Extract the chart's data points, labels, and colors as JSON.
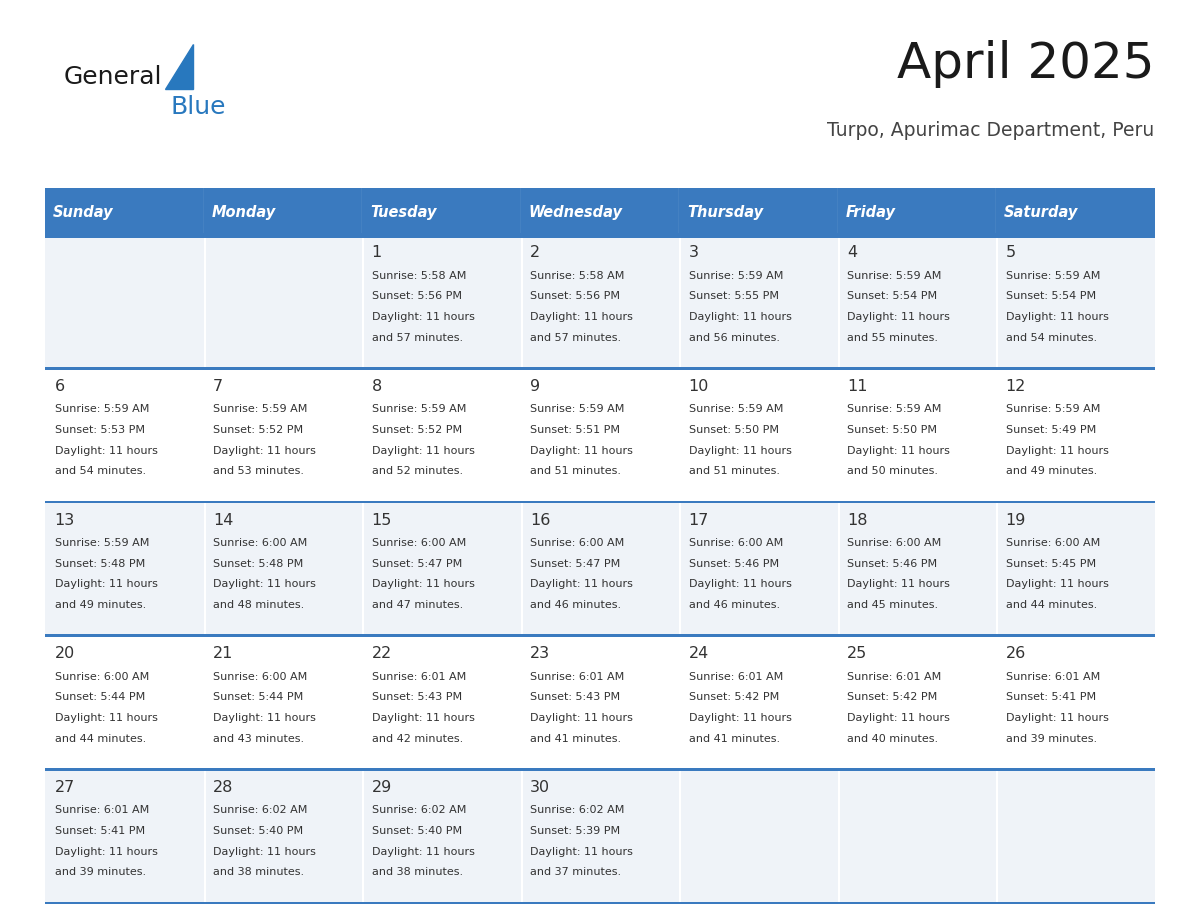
{
  "title": "April 2025",
  "subtitle": "Turpo, Apurimac Department, Peru",
  "days_of_week": [
    "Sunday",
    "Monday",
    "Tuesday",
    "Wednesday",
    "Thursday",
    "Friday",
    "Saturday"
  ],
  "header_bg": "#3a7abf",
  "header_text": "#ffffff",
  "row_bg_odd": "#eff3f8",
  "row_bg_even": "#ffffff",
  "border_color": "#3a7abf",
  "day_text_color": "#333333",
  "calendar_data": [
    [
      {
        "day": "",
        "sunrise": "",
        "sunset": "",
        "daylight_min": ""
      },
      {
        "day": "",
        "sunrise": "",
        "sunset": "",
        "daylight_min": ""
      },
      {
        "day": "1",
        "sunrise": "5:58 AM",
        "sunset": "5:56 PM",
        "daylight_min": "57 minutes."
      },
      {
        "day": "2",
        "sunrise": "5:58 AM",
        "sunset": "5:56 PM",
        "daylight_min": "57 minutes."
      },
      {
        "day": "3",
        "sunrise": "5:59 AM",
        "sunset": "5:55 PM",
        "daylight_min": "56 minutes."
      },
      {
        "day": "4",
        "sunrise": "5:59 AM",
        "sunset": "5:54 PM",
        "daylight_min": "55 minutes."
      },
      {
        "day": "5",
        "sunrise": "5:59 AM",
        "sunset": "5:54 PM",
        "daylight_min": "54 minutes."
      }
    ],
    [
      {
        "day": "6",
        "sunrise": "5:59 AM",
        "sunset": "5:53 PM",
        "daylight_min": "54 minutes."
      },
      {
        "day": "7",
        "sunrise": "5:59 AM",
        "sunset": "5:52 PM",
        "daylight_min": "53 minutes."
      },
      {
        "day": "8",
        "sunrise": "5:59 AM",
        "sunset": "5:52 PM",
        "daylight_min": "52 minutes."
      },
      {
        "day": "9",
        "sunrise": "5:59 AM",
        "sunset": "5:51 PM",
        "daylight_min": "51 minutes."
      },
      {
        "day": "10",
        "sunrise": "5:59 AM",
        "sunset": "5:50 PM",
        "daylight_min": "51 minutes."
      },
      {
        "day": "11",
        "sunrise": "5:59 AM",
        "sunset": "5:50 PM",
        "daylight_min": "50 minutes."
      },
      {
        "day": "12",
        "sunrise": "5:59 AM",
        "sunset": "5:49 PM",
        "daylight_min": "49 minutes."
      }
    ],
    [
      {
        "day": "13",
        "sunrise": "5:59 AM",
        "sunset": "5:48 PM",
        "daylight_min": "49 minutes."
      },
      {
        "day": "14",
        "sunrise": "6:00 AM",
        "sunset": "5:48 PM",
        "daylight_min": "48 minutes."
      },
      {
        "day": "15",
        "sunrise": "6:00 AM",
        "sunset": "5:47 PM",
        "daylight_min": "47 minutes."
      },
      {
        "day": "16",
        "sunrise": "6:00 AM",
        "sunset": "5:47 PM",
        "daylight_min": "46 minutes."
      },
      {
        "day": "17",
        "sunrise": "6:00 AM",
        "sunset": "5:46 PM",
        "daylight_min": "46 minutes."
      },
      {
        "day": "18",
        "sunrise": "6:00 AM",
        "sunset": "5:46 PM",
        "daylight_min": "45 minutes."
      },
      {
        "day": "19",
        "sunrise": "6:00 AM",
        "sunset": "5:45 PM",
        "daylight_min": "44 minutes."
      }
    ],
    [
      {
        "day": "20",
        "sunrise": "6:00 AM",
        "sunset": "5:44 PM",
        "daylight_min": "44 minutes."
      },
      {
        "day": "21",
        "sunrise": "6:00 AM",
        "sunset": "5:44 PM",
        "daylight_min": "43 minutes."
      },
      {
        "day": "22",
        "sunrise": "6:01 AM",
        "sunset": "5:43 PM",
        "daylight_min": "42 minutes."
      },
      {
        "day": "23",
        "sunrise": "6:01 AM",
        "sunset": "5:43 PM",
        "daylight_min": "41 minutes."
      },
      {
        "day": "24",
        "sunrise": "6:01 AM",
        "sunset": "5:42 PM",
        "daylight_min": "41 minutes."
      },
      {
        "day": "25",
        "sunrise": "6:01 AM",
        "sunset": "5:42 PM",
        "daylight_min": "40 minutes."
      },
      {
        "day": "26",
        "sunrise": "6:01 AM",
        "sunset": "5:41 PM",
        "daylight_min": "39 minutes."
      }
    ],
    [
      {
        "day": "27",
        "sunrise": "6:01 AM",
        "sunset": "5:41 PM",
        "daylight_min": "39 minutes."
      },
      {
        "day": "28",
        "sunrise": "6:02 AM",
        "sunset": "5:40 PM",
        "daylight_min": "38 minutes."
      },
      {
        "day": "29",
        "sunrise": "6:02 AM",
        "sunset": "5:40 PM",
        "daylight_min": "38 minutes."
      },
      {
        "day": "30",
        "sunrise": "6:02 AM",
        "sunset": "5:39 PM",
        "daylight_min": "37 minutes."
      },
      {
        "day": "",
        "sunrise": "",
        "sunset": "",
        "daylight_min": ""
      },
      {
        "day": "",
        "sunrise": "",
        "sunset": "",
        "daylight_min": ""
      },
      {
        "day": "",
        "sunrise": "",
        "sunset": "",
        "daylight_min": ""
      }
    ]
  ],
  "logo_general_color": "#1a1a1a",
  "logo_blue_color": "#2878be",
  "title_color": "#1a1a1a",
  "subtitle_color": "#444444",
  "fig_width": 11.88,
  "fig_height": 9.18,
  "dpi": 100
}
